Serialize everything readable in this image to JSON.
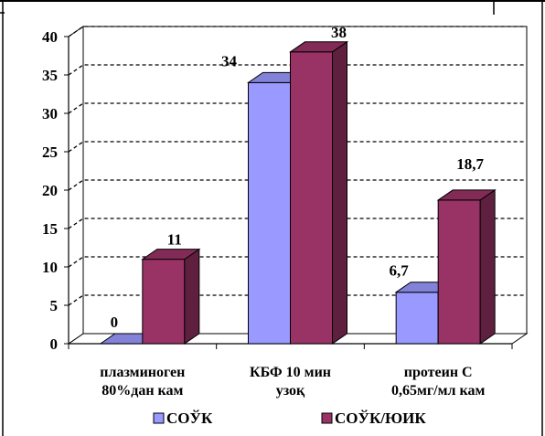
{
  "chart_data": {
    "type": "bar",
    "categories": [
      [
        "плазминоген",
        "80%дан кам"
      ],
      [
        "КБФ 10 мин",
        "узоқ"
      ],
      [
        "протеин С",
        "0,65мг/мл кам"
      ]
    ],
    "series": [
      {
        "name": "СОЎК",
        "values": [
          0,
          34,
          6.7
        ],
        "labels": [
          "0",
          "34",
          "6,7"
        ],
        "color": "#9999ff"
      },
      {
        "name": "СОЎК/ЮИК",
        "values": [
          11,
          38,
          18.7
        ],
        "labels": [
          "11",
          "38",
          "18,7"
        ],
        "color": "#993366"
      }
    ],
    "ylim": [
      0,
      40
    ],
    "yticks": [
      "0",
      "5",
      "10",
      "15",
      "20",
      "25",
      "30",
      "35",
      "40"
    ],
    "grid": true,
    "grid_style": "dashed",
    "style_3d": true,
    "legend_position": "bottom"
  }
}
